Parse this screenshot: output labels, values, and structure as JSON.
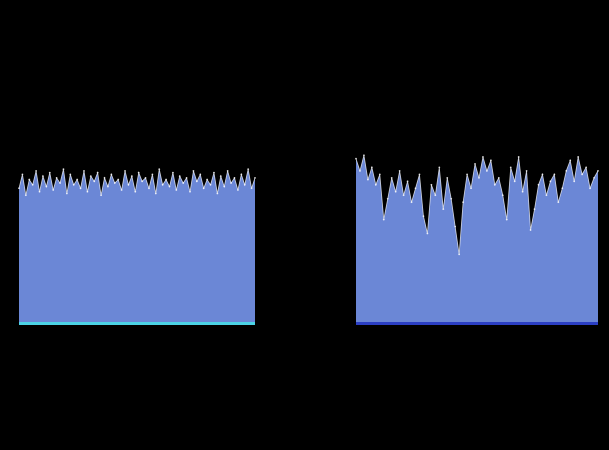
{
  "colors": {
    "background": "#000000",
    "area_fill": "#6b87d6",
    "area_stroke": "#ffffff",
    "left_baseline": "#4cd3e6",
    "right_baseline": "#2b3fc4"
  },
  "chart_data": [
    {
      "type": "area",
      "title": "",
      "xlabel": "",
      "ylabel": "",
      "grid": false,
      "legend": "none",
      "ylim": [
        0,
        1
      ],
      "baseline_color_key": "left_baseline",
      "values": [
        0.78,
        0.86,
        0.74,
        0.83,
        0.8,
        0.88,
        0.76,
        0.85,
        0.79,
        0.87,
        0.77,
        0.84,
        0.81,
        0.89,
        0.75,
        0.86,
        0.8,
        0.83,
        0.78,
        0.88,
        0.76,
        0.85,
        0.82,
        0.87,
        0.74,
        0.84,
        0.79,
        0.86,
        0.81,
        0.83,
        0.77,
        0.88,
        0.8,
        0.85,
        0.76,
        0.87,
        0.82,
        0.84,
        0.78,
        0.86,
        0.75,
        0.89,
        0.8,
        0.83,
        0.79,
        0.87,
        0.77,
        0.85,
        0.81,
        0.84,
        0.76,
        0.88,
        0.82,
        0.86,
        0.78,
        0.83,
        0.8,
        0.87,
        0.75,
        0.85,
        0.79,
        0.88,
        0.81,
        0.84,
        0.77,
        0.86,
        0.8,
        0.89,
        0.78,
        0.84
      ]
    },
    {
      "type": "area",
      "title": "",
      "xlabel": "",
      "ylabel": "",
      "grid": false,
      "legend": "none",
      "ylim": [
        0,
        1
      ],
      "baseline_color_key": "right_baseline",
      "values": [
        0.95,
        0.88,
        0.97,
        0.83,
        0.9,
        0.8,
        0.86,
        0.6,
        0.72,
        0.84,
        0.76,
        0.88,
        0.74,
        0.82,
        0.7,
        0.78,
        0.86,
        0.62,
        0.52,
        0.8,
        0.74,
        0.9,
        0.66,
        0.84,
        0.72,
        0.56,
        0.4,
        0.7,
        0.86,
        0.78,
        0.92,
        0.84,
        0.96,
        0.88,
        0.94,
        0.8,
        0.84,
        0.74,
        0.6,
        0.9,
        0.82,
        0.96,
        0.76,
        0.88,
        0.54,
        0.66,
        0.8,
        0.86,
        0.74,
        0.82,
        0.86,
        0.7,
        0.78,
        0.88,
        0.94,
        0.82,
        0.96,
        0.86,
        0.9,
        0.78,
        0.84,
        0.88
      ]
    }
  ]
}
